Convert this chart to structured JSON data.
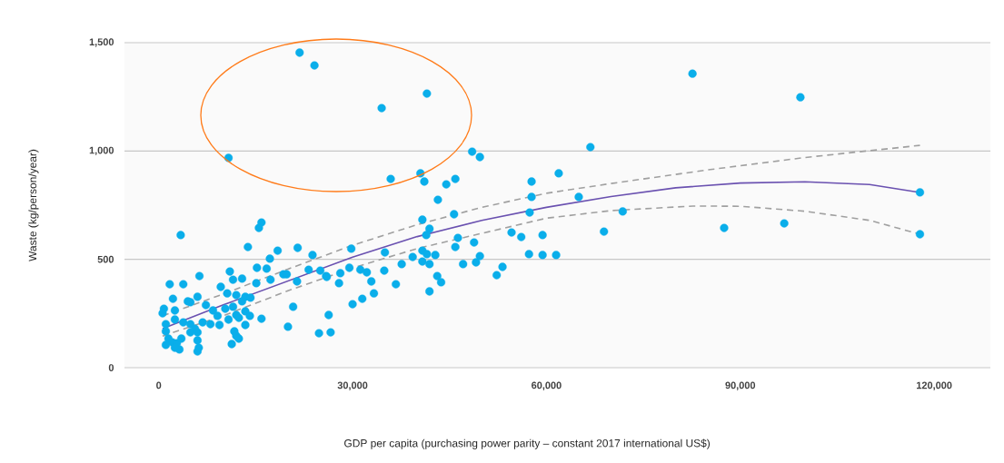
{
  "chart_data": {
    "type": "scatter",
    "xlabel": "GDP per capita (purchasing power parity – constant 2017 international US$)",
    "ylabel": "Waste (kg/person/year)",
    "xlim": [
      -5300,
      128700
    ],
    "ylim": [
      0,
      1500
    ],
    "xticks": [
      0,
      {
        "value": 30000,
        "label": "30,000"
      },
      {
        "value": 60000,
        "label": "60,000"
      },
      {
        "value": 90000,
        "label": "90,000"
      },
      {
        "value": 120000,
        "label": "120,000"
      }
    ],
    "yticks": [
      0,
      500,
      {
        "value": 1000,
        "label": "1,000"
      },
      {
        "value": 1500,
        "label": "1,500"
      }
    ],
    "grid": "y",
    "series": [
      {
        "marker": "circle",
        "color": "#0aaeea",
        "x": [
          3400,
          15900,
          15500,
          13800,
          18400,
          21500,
          17200,
          23800,
          1700,
          3800,
          6300,
          2200,
          800,
          600,
          2500,
          4500,
          6000,
          4900,
          7300,
          9600,
          11000,
          11500,
          12900,
          15200,
          16700,
          15100,
          17300,
          19300,
          19800,
          21400,
          23200,
          25000,
          25900,
          10600,
          12000,
          13400,
          14200,
          12900,
          10300,
          11500,
          13400,
          12000,
          8400,
          9100,
          8000,
          6800,
          9400,
          10800,
          12400,
          14100,
          15900,
          13400,
          11700,
          12000,
          12400,
          11300,
          20800,
          20000,
          24800,
          1100,
          2500,
          3800,
          4900,
          5600,
          4900,
          6000,
          1500,
          2100,
          1100,
          2800,
          3500,
          3200,
          2500,
          6000,
          6000,
          6200,
          1100,
          21800,
          24100,
          41500,
          34500,
          10800,
          48500,
          49700,
          35900,
          40500,
          41100,
          44500,
          45900,
          43200,
          40800,
          45700,
          57700,
          57700,
          57400,
          41900,
          41400,
          46300,
          45900,
          48800,
          49700,
          49100,
          47100,
          54600,
          56100,
          59400,
          57300,
          59400,
          53200,
          52300,
          40800,
          41500,
          40800,
          41900,
          42800,
          39300,
          37600,
          34900,
          35000,
          29800,
          26000,
          28100,
          27900,
          29500,
          31200,
          32200,
          32900,
          33300,
          36700,
          31500,
          30000,
          26300,
          26600,
          43100,
          43700,
          41900,
          99300,
          66800,
          61900,
          65000,
          71800,
          68900,
          61500,
          87500,
          96800,
          117800,
          117800,
          82600
        ],
        "values": [
          612,
          670,
          645,
          557,
          540,
          553,
          503,
          520,
          385,
          385,
          423,
          318,
          272,
          251,
          264,
          306,
          327,
          302,
          289,
          373,
          444,
          406,
          411,
          461,
          457,
          390,
          406,
          431,
          431,
          398,
          452,
          448,
          423,
          343,
          335,
          327,
          323,
          306,
          272,
          281,
          260,
          243,
          264,
          239,
          201,
          209,
          197,
          222,
          230,
          239,
          226,
          197,
          168,
          147,
          134,
          109,
          281,
          189,
          159,
          201,
          222,
          209,
          201,
          180,
          163,
          163,
          134,
          117,
          105,
          113,
          134,
          84,
          92,
          126,
          75,
          92,
          168,
          1454,
          1395,
          1265,
          1198,
          968,
          997,
          972,
          871,
          897,
          859,
          846,
          871,
          775,
          683,
          708,
          859,
          788,
          716,
          641,
          612,
          599,
          557,
          578,
          515,
          486,
          478,
          624,
          603,
          612,
          524,
          520,
          465,
          427,
          540,
          524,
          490,
          478,
          520,
          511,
          478,
          448,
          532,
          549,
          419,
          436,
          390,
          461,
          452,
          440,
          398,
          343,
          385,
          318,
          293,
          243,
          163,
          423,
          394,
          352,
          1248,
          1018,
          897,
          788,
          721,
          628,
          520,
          645,
          666,
          809,
          616,
          1357
        ]
      },
      {
        "type": "line",
        "marker": "none",
        "line_style": "solid",
        "color": "#6a51b0",
        "x": [
          600,
          10000,
          20000,
          30000,
          40000,
          50000,
          60000,
          70000,
          80000,
          90000,
          100000,
          110000,
          117800
        ],
        "values": [
          180,
          290,
          400,
          510,
          605,
          680,
          740,
          790,
          830,
          852,
          858,
          845,
          809
        ]
      },
      {
        "type": "line",
        "marker": "none",
        "line_style": "dashed",
        "color": "#a0a0a0",
        "x": [
          600,
          10000,
          20000,
          30000,
          40000,
          50000,
          60000,
          70000,
          85000,
          100000,
          117800
        ],
        "values": [
          239,
          340,
          455,
          565,
          660,
          740,
          805,
          850,
          913,
          970,
          1026
        ]
      },
      {
        "type": "line",
        "marker": "none",
        "line_style": "dashed",
        "color": "#a0a0a0",
        "x": [
          600,
          10000,
          20000,
          30000,
          40000,
          50000,
          60000,
          70000,
          82700,
          90000,
          100000,
          110000,
          117800
        ],
        "values": [
          146,
          240,
          355,
          460,
          550,
          620,
          690,
          725,
          746,
          745,
          722,
          680,
          616
        ]
      }
    ]
  }
}
